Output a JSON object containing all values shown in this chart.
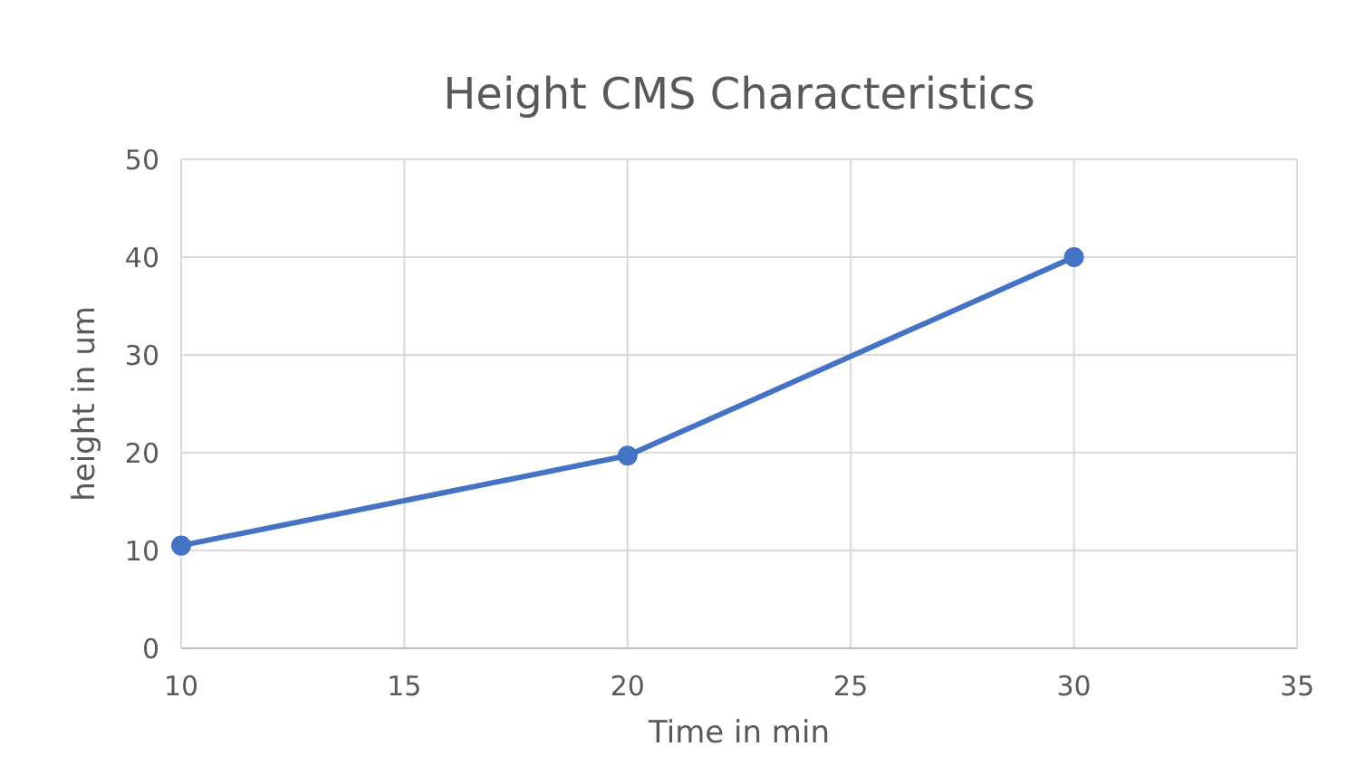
{
  "chart_data": {
    "type": "line",
    "title": "Height CMS Characteristics",
    "xlabel": "Time in min",
    "ylabel": "height in um",
    "x": [
      10,
      20,
      30
    ],
    "series": [
      {
        "color": "#4472c4",
        "values": [
          10.5,
          19.7,
          40
        ]
      }
    ],
    "xlim": [
      10,
      35
    ],
    "xticks": [
      10,
      15,
      20,
      25,
      30,
      35
    ],
    "ylim": [
      0,
      50
    ],
    "yticks": [
      0,
      10,
      20,
      30,
      40,
      50
    ],
    "grid": true,
    "marker": "circle",
    "line_style": "solid"
  }
}
